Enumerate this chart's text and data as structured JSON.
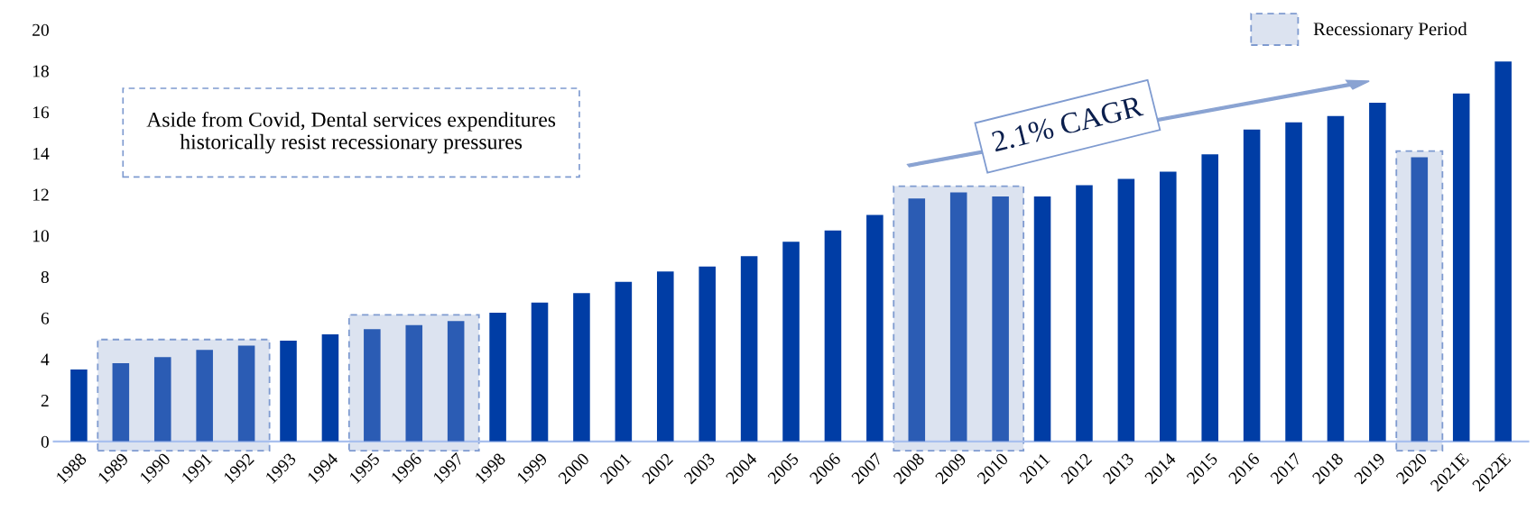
{
  "chart_data": {
    "type": "bar",
    "categories": [
      "1988",
      "1989",
      "1990",
      "1991",
      "1992",
      "1993",
      "1994",
      "1995",
      "1996",
      "1997",
      "1998",
      "1999",
      "2000",
      "2001",
      "2002",
      "2003",
      "2004",
      "2005",
      "2006",
      "2007",
      "2008",
      "2009",
      "2010",
      "2011",
      "2012",
      "2013",
      "2014",
      "2015",
      "2016",
      "2017",
      "2018",
      "2019",
      "2020",
      "2021E",
      "2022E"
    ],
    "values": [
      3.5,
      3.8,
      4.1,
      4.45,
      4.65,
      4.9,
      5.2,
      5.45,
      5.65,
      5.85,
      6.25,
      6.75,
      7.2,
      7.75,
      8.25,
      8.5,
      9.0,
      9.7,
      10.25,
      11.0,
      11.8,
      12.1,
      11.9,
      11.9,
      12.45,
      12.75,
      13.1,
      13.95,
      15.15,
      15.5,
      15.8,
      16.45,
      13.8,
      16.9,
      18.45
    ],
    "colors": [
      "#003da5",
      "#2b5cb4",
      "#2b5cb4",
      "#2b5cb4",
      "#2b5cb4",
      "#003da5",
      "#003da5",
      "#2b5cb4",
      "#2b5cb4",
      "#2b5cb4",
      "#003da5",
      "#003da5",
      "#003da5",
      "#003da5",
      "#003da5",
      "#003da5",
      "#003da5",
      "#003da5",
      "#003da5",
      "#003da5",
      "#2b5cb4",
      "#2b5cb4",
      "#2b5cb4",
      "#003da5",
      "#003da5",
      "#003da5",
      "#003da5",
      "#003da5",
      "#003da5",
      "#003da5",
      "#003da5",
      "#003da5",
      "#2b5cb4",
      "#003da5",
      "#003da5"
    ],
    "ylim": [
      0,
      20
    ],
    "yticks": [
      0,
      2,
      4,
      6,
      8,
      10,
      12,
      14,
      16,
      18,
      20
    ],
    "bands": [
      {
        "axis": "x",
        "from": "1989",
        "to": "1992",
        "label": "Recessionary Period",
        "color": "#dce3f0"
      },
      {
        "axis": "x",
        "from": "1995",
        "to": "1997",
        "color": "#dce3f0"
      },
      {
        "axis": "x",
        "from": "2008",
        "to": "2010",
        "color": "#dce3f0"
      },
      {
        "axis": "x",
        "from": "2020",
        "to": "2020",
        "color": "#dce3f0"
      }
    ],
    "annotations": [
      "Aside from Covid, Dental services expenditures\nhistorically resist recessionary pressures",
      "2.1% CAGR"
    ],
    "legend": "top right",
    "grid": false
  }
}
